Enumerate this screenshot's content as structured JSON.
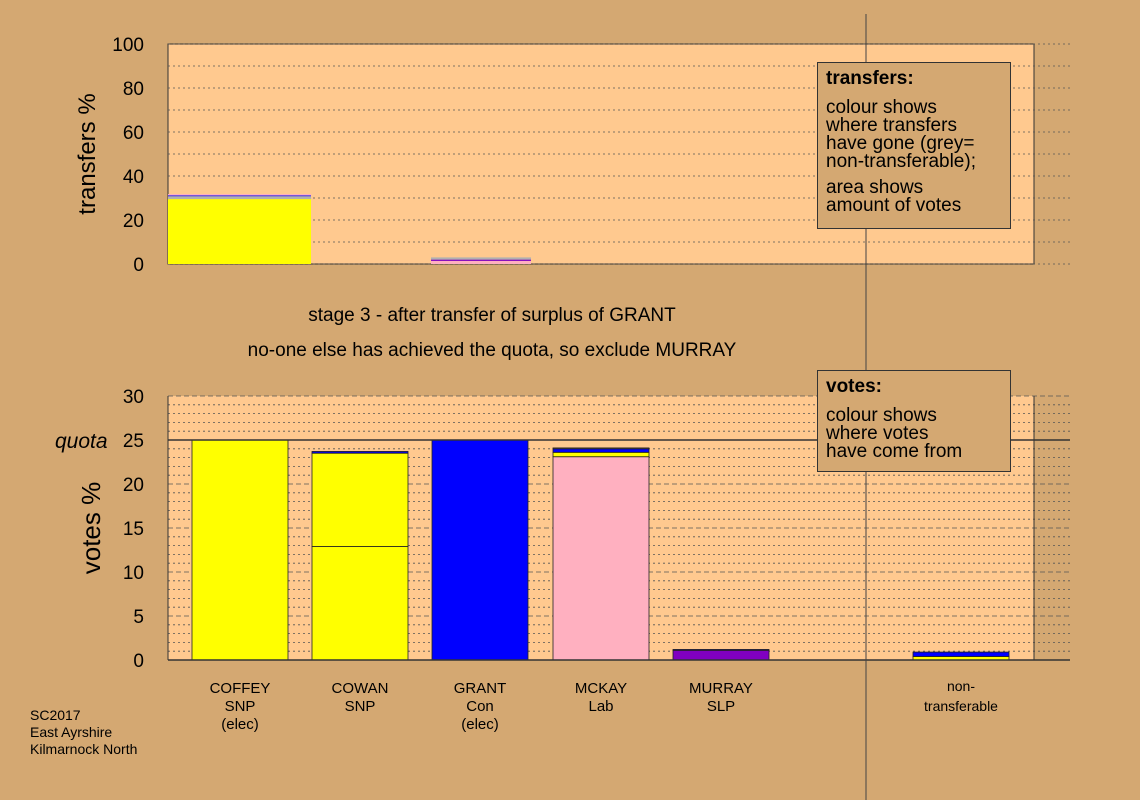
{
  "colors": {
    "background": "#d4a872",
    "plot_bg": "#ffc98f",
    "SNP": "#ffff00",
    "Con": "#0000ff",
    "Lab": "#ffb0c0",
    "SLP": "#8000c0",
    "nontransferable": "#b0b0b0"
  },
  "captions": {
    "stage": "stage 3 - after transfer of surplus of GRANT",
    "action": "no-one else has achieved the quota, so exclude MURRAY"
  },
  "legend_transfers": {
    "title": "transfers:",
    "line1": "colour shows",
    "line2": "where transfers",
    "line3": "have gone (grey=",
    "line4": "non-transferable);",
    "line5": "area shows",
    "line6": "amount of votes"
  },
  "legend_votes": {
    "title": "votes:",
    "line1": "colour shows",
    "line2": "where votes",
    "line3": "have come from"
  },
  "source": {
    "line1": "SC2017",
    "line2": "East Ayrshire",
    "line3": "Kilmarnock North"
  },
  "chart_data": [
    {
      "type": "bar",
      "stacked": true,
      "ylabel": "transfers %",
      "ylim": [
        0,
        100
      ],
      "yticks": [
        0,
        20,
        40,
        60,
        80,
        100
      ],
      "grid": true,
      "bars": [
        {
          "column": "COFFEY",
          "segments": [
            {
              "party": "SNP",
              "value": 29.5
            },
            {
              "party": "nontransferable",
              "value": 1.3
            },
            {
              "party": "Con",
              "value": 0.4
            },
            {
              "party": "Lab",
              "value": 0.6
            }
          ]
        },
        {
          "column": "GRANT",
          "segments": [
            {
              "party": "Lab",
              "value": 1.4
            },
            {
              "party": "SLP",
              "value": 0.6
            },
            {
              "party": "nontransferable",
              "value": 1.0
            }
          ]
        }
      ]
    },
    {
      "type": "bar",
      "stacked": true,
      "ylabel": "votes %",
      "ylim": [
        0,
        30
      ],
      "yticks": [
        0,
        5,
        10,
        15,
        20,
        25,
        30
      ],
      "quota": 25,
      "quota_label": "quota",
      "grid": true,
      "categories": [
        "COFFEY SNP (elec)",
        "COWAN SNP",
        "GRANT Con (elec)",
        "MCKAY Lab",
        "MURRAY SLP",
        "non-transferable"
      ],
      "bars": [
        {
          "label": [
            "COFFEY",
            "SNP",
            "(elec)"
          ],
          "segments": [
            {
              "party": "SNP",
              "value": 25.0
            }
          ]
        },
        {
          "label": [
            "COWAN",
            "SNP"
          ],
          "segments": [
            {
              "party": "SNP",
              "value": 12.9
            },
            {
              "party": "SNP",
              "value": 10.6
            },
            {
              "party": "Con",
              "value": 0.2
            }
          ]
        },
        {
          "label": [
            "GRANT",
            "Con",
            "(elec)"
          ],
          "segments": [
            {
              "party": "Con",
              "value": 25.0
            }
          ]
        },
        {
          "label": [
            "MCKAY",
            "Lab"
          ],
          "segments": [
            {
              "party": "Lab",
              "value": 23.1
            },
            {
              "party": "SNP",
              "value": 0.5
            },
            {
              "party": "Con",
              "value": 0.4
            },
            {
              "party": "Lab",
              "value": 0.1
            }
          ]
        },
        {
          "label": [
            "MURRAY",
            "SLP"
          ],
          "segments": [
            {
              "party": "SLP",
              "value": 1.1
            },
            {
              "party": "Con",
              "value": 0.1
            }
          ]
        },
        {
          "label": [
            "non-",
            "transferable"
          ],
          "segments": [
            {
              "party": "SNP",
              "value": 0.4
            },
            {
              "party": "Con",
              "value": 0.5
            }
          ]
        }
      ]
    }
  ]
}
